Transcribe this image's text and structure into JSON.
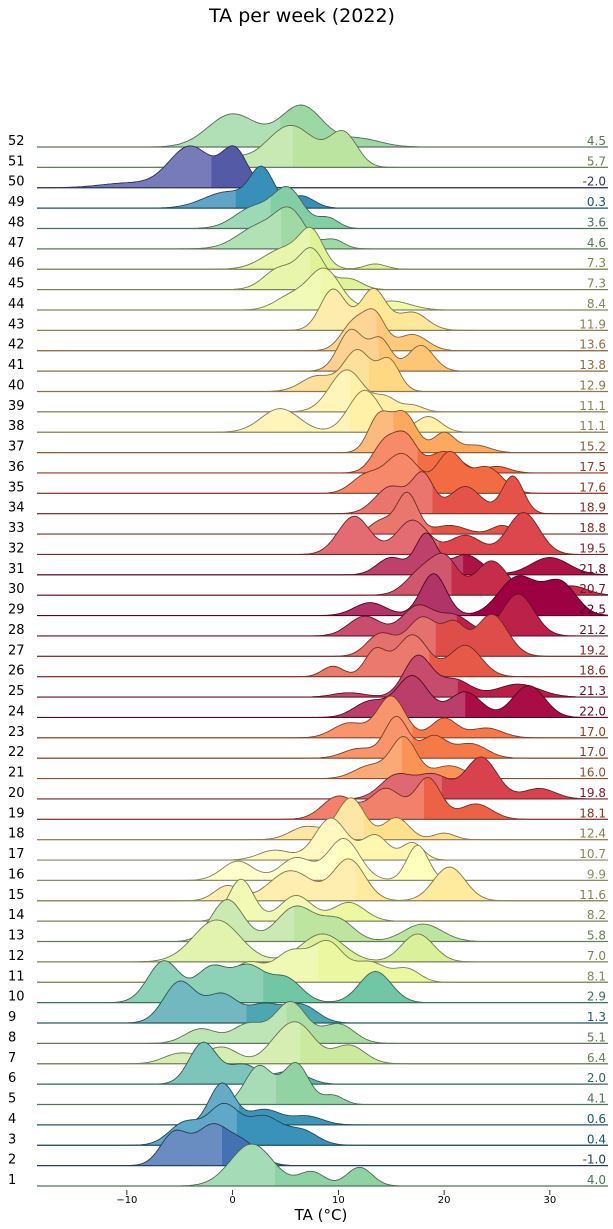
{
  "chart_data": {
    "type": "ridgeline",
    "title": "TA per week (2022)",
    "xlabel": "TA (°C)",
    "xlim": [
      -18.5,
      35.5
    ],
    "x_ticks": [
      -10,
      0,
      10,
      20,
      30
    ],
    "x_tick_labels": [
      "−10",
      "0",
      "10",
      "20",
      "30"
    ],
    "colormap": "Spectral_r",
    "weeks": [
      {
        "label": "52",
        "mean": 4.5,
        "peaks": [
          [
            0,
            2.3,
            0.8
          ],
          [
            6.5,
            2.0,
            1.0
          ],
          [
            12,
            2.0,
            0.2
          ]
        ]
      },
      {
        "label": "51",
        "mean": 5.7,
        "peaks": [
          [
            -1,
            1.8,
            0.25
          ],
          [
            5.5,
            2.3,
            0.9
          ],
          [
            10.5,
            1.3,
            0.7
          ]
        ]
      },
      {
        "label": "50",
        "mean": -2.0,
        "peaks": [
          [
            -4,
            2.0,
            0.9
          ],
          [
            0.2,
            1.2,
            0.8
          ],
          [
            -10,
            2.5,
            0.1
          ]
        ]
      },
      {
        "label": "49",
        "mean": 0.3,
        "peaks": [
          [
            -0.5,
            2.2,
            0.4
          ],
          [
            2.8,
            1.1,
            0.9
          ],
          [
            6.5,
            1.2,
            0.3
          ]
        ]
      },
      {
        "label": "48",
        "mean": 3.6,
        "peaks": [
          [
            2,
            1.8,
            0.5
          ],
          [
            5.3,
            1.4,
            0.9
          ],
          [
            9,
            1.0,
            0.25
          ]
        ]
      },
      {
        "label": "47",
        "mean": 4.6,
        "peaks": [
          [
            2.5,
            2.0,
            0.6
          ],
          [
            5.5,
            1.4,
            0.9
          ],
          [
            9.5,
            1.0,
            0.25
          ]
        ]
      },
      {
        "label": "46",
        "mean": 7.3,
        "peaks": [
          [
            5,
            2.0,
            0.6
          ],
          [
            7.5,
            1.1,
            0.9
          ],
          [
            13.5,
            1.0,
            0.15
          ]
        ]
      },
      {
        "label": "45",
        "mean": 7.3,
        "peaks": [
          [
            4.5,
            1.5,
            0.5
          ],
          [
            7.5,
            1.2,
            0.9
          ],
          [
            11,
            1.2,
            0.25
          ]
        ]
      },
      {
        "label": "44",
        "mean": 8.4,
        "peaks": [
          [
            5.5,
            1.5,
            0.3
          ],
          [
            8.7,
            1.5,
            0.9
          ],
          [
            15,
            1.8,
            0.2
          ]
        ]
      },
      {
        "label": "43",
        "mean": 11.9,
        "peaks": [
          [
            9.5,
            1.2,
            0.8
          ],
          [
            13.3,
            1.2,
            0.8
          ],
          [
            17,
            1.4,
            0.35
          ]
        ]
      },
      {
        "label": "42",
        "mean": 13.6,
        "peaks": [
          [
            11.5,
            1.2,
            0.7
          ],
          [
            13.5,
            1.0,
            0.8
          ],
          [
            17,
            1.4,
            0.4
          ]
        ]
      },
      {
        "label": "41",
        "mean": 13.8,
        "peaks": [
          [
            11.2,
            1.2,
            0.8
          ],
          [
            14,
            1.0,
            0.6
          ],
          [
            17.8,
            1.2,
            0.5
          ]
        ]
      },
      {
        "label": "40",
        "mean": 12.9,
        "peaks": [
          [
            8,
            1.5,
            0.3
          ],
          [
            11.8,
            1.3,
            0.8
          ],
          [
            14.8,
            1.0,
            0.6
          ]
        ]
      },
      {
        "label": "39",
        "mean": 11.1,
        "peaks": [
          [
            10.8,
            1.6,
            0.95
          ],
          [
            14.5,
            1.0,
            0.3
          ],
          [
            17,
            1.0,
            0.15
          ]
        ]
      },
      {
        "label": "38",
        "mean": 11.1,
        "peaks": [
          [
            4.5,
            1.8,
            0.45
          ],
          [
            12.5,
            1.5,
            0.8
          ],
          [
            18.5,
            1.2,
            0.3
          ]
        ]
      },
      {
        "label": "37",
        "mean": 15.2,
        "peaks": [
          [
            13.8,
            1.0,
            0.7
          ],
          [
            16.2,
            1.2,
            0.8
          ],
          [
            20,
            1.0,
            0.4
          ],
          [
            23,
            1.3,
            0.15
          ]
        ]
      },
      {
        "label": "36",
        "mean": 17.5,
        "peaks": [
          [
            14.5,
            1.2,
            0.75
          ],
          [
            16.5,
            1.0,
            0.7
          ],
          [
            20,
            1.5,
            0.5
          ],
          [
            25,
            1.2,
            0.15
          ]
        ]
      },
      {
        "label": "35",
        "mean": 17.6,
        "peaks": [
          [
            12.5,
            1.3,
            0.25
          ],
          [
            16,
            1.6,
            0.6
          ],
          [
            20.5,
            1.2,
            0.6
          ],
          [
            24,
            1.5,
            0.4
          ]
        ]
      },
      {
        "label": "34",
        "mean": 18.9,
        "peaks": [
          [
            15,
            1.5,
            0.4
          ],
          [
            18,
            1.0,
            0.55
          ],
          [
            22,
            1.5,
            0.4
          ],
          [
            26.5,
            1.0,
            0.55
          ]
        ]
      },
      {
        "label": "33",
        "mean": 18.8,
        "peaks": [
          [
            16.5,
            1.0,
            0.95
          ],
          [
            14,
            1.0,
            0.3
          ],
          [
            20.5,
            1.5,
            0.2
          ],
          [
            25.5,
            1.0,
            0.2
          ]
        ]
      },
      {
        "label": "32",
        "mean": 19.5,
        "peaks": [
          [
            11.5,
            1.5,
            0.5
          ],
          [
            17,
            1.5,
            0.45
          ],
          [
            22,
            1.5,
            0.25
          ],
          [
            27.5,
            1.5,
            0.55
          ]
        ]
      },
      {
        "label": "31",
        "mean": 21.8,
        "peaks": [
          [
            15,
            1.3,
            0.3
          ],
          [
            18.3,
            1.0,
            0.7
          ],
          [
            22,
            1.5,
            0.35
          ],
          [
            30,
            1.8,
            0.3
          ]
        ]
      },
      {
        "label": "30",
        "mean": 20.7,
        "peaks": [
          [
            18,
            1.5,
            0.4
          ],
          [
            20.2,
            1.2,
            0.5
          ],
          [
            24.5,
            1.5,
            0.55
          ],
          [
            32,
            1.5,
            0.15
          ]
        ]
      },
      {
        "label": "29",
        "mean": 22.5,
        "peaks": [
          [
            13,
            1.5,
            0.2
          ],
          [
            19,
            1.2,
            0.65
          ],
          [
            27,
            1.8,
            0.6
          ],
          [
            31,
            1.5,
            0.5
          ]
        ]
      },
      {
        "label": "28",
        "mean": 21.2,
        "peaks": [
          [
            12.5,
            1.5,
            0.4
          ],
          [
            17.5,
            1.5,
            0.6
          ],
          [
            21,
            1.5,
            0.4
          ],
          [
            27,
            1.5,
            0.85
          ]
        ]
      },
      {
        "label": "27",
        "mean": 19.2,
        "peaks": [
          [
            14,
            1.3,
            0.4
          ],
          [
            18,
            1.5,
            0.7
          ],
          [
            24.5,
            1.5,
            0.75
          ],
          [
            21,
            1.0,
            0.5
          ]
        ]
      },
      {
        "label": "26",
        "mean": 18.6,
        "peaks": [
          [
            9.5,
            1.0,
            0.2
          ],
          [
            13.5,
            1.0,
            0.5
          ],
          [
            17,
            1.5,
            0.8
          ],
          [
            22,
            1.5,
            0.6
          ]
        ]
      },
      {
        "label": "25",
        "mean": 21.3,
        "peaks": [
          [
            11,
            1.5,
            0.1
          ],
          [
            17.5,
            1.3,
            0.95
          ],
          [
            21,
            1.5,
            0.4
          ],
          [
            27,
            2.0,
            0.3
          ]
        ]
      },
      {
        "label": "24",
        "mean": 22.0,
        "peaks": [
          [
            13,
            1.5,
            0.25
          ],
          [
            17,
            1.5,
            0.65
          ],
          [
            22,
            1.5,
            0.4
          ],
          [
            28,
            1.5,
            0.5
          ]
        ]
      },
      {
        "label": "23",
        "mean": 17.0,
        "peaks": [
          [
            11,
            1.5,
            0.3
          ],
          [
            15,
            1.3,
            0.85
          ],
          [
            20,
            1.2,
            0.4
          ],
          [
            24,
            1.5,
            0.2
          ]
        ]
      },
      {
        "label": "22",
        "mean": 17.0,
        "peaks": [
          [
            15.5,
            1.1,
            0.85
          ],
          [
            19,
            1.2,
            0.45
          ],
          [
            22.5,
            1.5,
            0.3
          ],
          [
            12,
            1.5,
            0.2
          ]
        ]
      },
      {
        "label": "21",
        "mean": 16.0,
        "peaks": [
          [
            13,
            1.5,
            0.3
          ],
          [
            16.2,
            1.2,
            0.95
          ],
          [
            20.5,
            1.5,
            0.3
          ]
        ]
      },
      {
        "label": "20",
        "mean": 19.8,
        "peaks": [
          [
            15.5,
            1.5,
            0.45
          ],
          [
            19,
            1.5,
            0.45
          ],
          [
            23.5,
            1.5,
            0.8
          ],
          [
            29,
            1.5,
            0.2
          ]
        ]
      },
      {
        "label": "19",
        "mean": 18.1,
        "peaks": [
          [
            10,
            1.5,
            0.45
          ],
          [
            14.5,
            1.5,
            0.6
          ],
          [
            18.5,
            1.2,
            0.8
          ],
          [
            23,
            1.5,
            0.3
          ]
        ]
      },
      {
        "label": "18",
        "mean": 12.4,
        "peaks": [
          [
            7,
            1.5,
            0.3
          ],
          [
            11.2,
            1.3,
            0.95
          ],
          [
            15.5,
            1.2,
            0.5
          ],
          [
            20,
            1.0,
            0.15
          ]
        ]
      },
      {
        "label": "17",
        "mean": 10.7,
        "peaks": [
          [
            4,
            1.5,
            0.2
          ],
          [
            9.3,
            1.5,
            0.85
          ],
          [
            13.5,
            1.2,
            0.5
          ],
          [
            17,
            1.0,
            0.35
          ]
        ]
      },
      {
        "label": "16",
        "mean": 9.9,
        "peaks": [
          [
            0.5,
            1.5,
            0.3
          ],
          [
            6,
            1.5,
            0.35
          ],
          [
            10.5,
            1.5,
            0.65
          ],
          [
            17.5,
            1.0,
            0.55
          ]
        ]
      },
      {
        "label": "15",
        "mean": 11.6,
        "peaks": [
          [
            -0.5,
            1.2,
            0.2
          ],
          [
            5.5,
            2.0,
            0.4
          ],
          [
            11,
            1.5,
            0.55
          ],
          [
            20.5,
            1.5,
            0.45
          ]
        ]
      },
      {
        "label": "14",
        "mean": 8.2,
        "peaks": [
          [
            0.8,
            1.2,
            0.9
          ],
          [
            6,
            1.5,
            0.55
          ],
          [
            11,
            1.5,
            0.4
          ]
        ]
      },
      {
        "label": "13",
        "mean": 5.8,
        "peaks": [
          [
            -0.5,
            1.5,
            0.6
          ],
          [
            6,
            1.8,
            0.5
          ],
          [
            10,
            1.5,
            0.3
          ],
          [
            18,
            1.8,
            0.25
          ]
        ]
      },
      {
        "label": "12",
        "mean": 7.0,
        "peaks": [
          [
            -1.5,
            2.2,
            0.9
          ],
          [
            8.5,
            2.0,
            0.6
          ],
          [
            17.5,
            1.5,
            0.6
          ]
        ]
      },
      {
        "label": "11",
        "mean": 8.1,
        "peaks": [
          [
            1.5,
            1.5,
            0.3
          ],
          [
            5.5,
            1.5,
            0.45
          ],
          [
            9,
            1.5,
            0.6
          ],
          [
            13,
            1.5,
            0.3
          ],
          [
            16.5,
            1.2,
            0.2
          ]
        ]
      },
      {
        "label": "10",
        "mean": 2.9,
        "peaks": [
          [
            -6.5,
            1.5,
            0.6
          ],
          [
            -2,
            1.5,
            0.5
          ],
          [
            1.5,
            1.5,
            0.5
          ],
          [
            5,
            1.5,
            0.35
          ],
          [
            13.5,
            1.5,
            0.45
          ]
        ]
      },
      {
        "label": "9",
        "mean": 1.3,
        "peaks": [
          [
            -5,
            1.5,
            0.8
          ],
          [
            -1,
            1.5,
            0.55
          ],
          [
            3,
            1.5,
            0.35
          ],
          [
            6.5,
            1.5,
            0.35
          ]
        ]
      },
      {
        "label": "8",
        "mean": 5.1,
        "peaks": [
          [
            -3,
            1.5,
            0.3
          ],
          [
            1.5,
            1.5,
            0.4
          ],
          [
            5.5,
            1.5,
            0.85
          ],
          [
            10,
            1.5,
            0.4
          ]
        ]
      },
      {
        "label": "7",
        "mean": 6.4,
        "peaks": [
          [
            -5,
            1.5,
            0.25
          ],
          [
            -1,
            1.5,
            0.4
          ],
          [
            4.5,
            1.5,
            0.5
          ],
          [
            6.5,
            1.5,
            0.75
          ],
          [
            11,
            1.5,
            0.45
          ]
        ]
      },
      {
        "label": "6",
        "mean": 2.0,
        "peaks": [
          [
            -2.8,
            1.3,
            0.95
          ],
          [
            1,
            1.5,
            0.45
          ],
          [
            5.5,
            1.5,
            0.3
          ]
        ]
      },
      {
        "label": "5",
        "mean": 4.1,
        "peaks": [
          [
            2.5,
            1.3,
            0.85
          ],
          [
            6,
            1.2,
            0.9
          ],
          [
            9.5,
            1.0,
            0.2
          ]
        ]
      },
      {
        "label": "4",
        "mean": 0.6,
        "peaks": [
          [
            -1,
            1.2,
            0.95
          ],
          [
            3,
            1.5,
            0.35
          ],
          [
            7,
            1.5,
            0.2
          ]
        ]
      },
      {
        "label": "3",
        "mean": 0.4,
        "peaks": [
          [
            -4.5,
            1.5,
            0.45
          ],
          [
            -0.8,
            1.5,
            0.8
          ],
          [
            3,
            1.5,
            0.55
          ],
          [
            6.5,
            1.5,
            0.3
          ]
        ]
      },
      {
        "label": "2",
        "mean": -1.0,
        "peaks": [
          [
            -5.5,
            1.3,
            0.6
          ],
          [
            -2,
            1.5,
            0.7
          ],
          [
            1,
            1.5,
            0.4
          ]
        ]
      },
      {
        "label": "1",
        "mean": 4.0,
        "peaks": [
          [
            1.8,
            2.0,
            0.9
          ],
          [
            7.5,
            1.2,
            0.3
          ],
          [
            12,
            1.2,
            0.4
          ]
        ]
      }
    ]
  }
}
